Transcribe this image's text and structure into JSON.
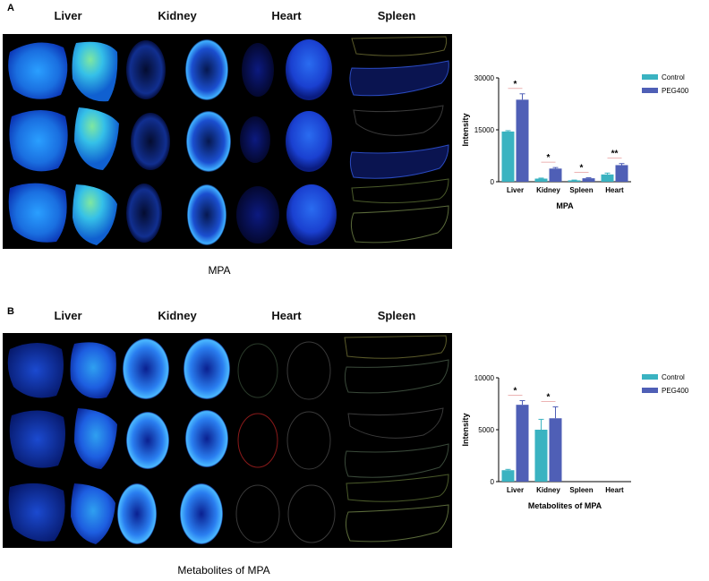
{
  "panel_a": {
    "letter": "A",
    "organs": [
      "Liver",
      "Kidney",
      "Heart",
      "Spleen"
    ],
    "caption": "MPA"
  },
  "panel_b": {
    "letter": "B",
    "organs": [
      "Liver",
      "Kidney",
      "Heart",
      "Spleen"
    ],
    "caption": "Metabolites of MPA"
  },
  "colors": {
    "control": "#3ab3c1",
    "peg400": "#4f5fb6",
    "significance_line": "#e8a0a0",
    "image_bg": "#000000"
  },
  "chart_data": [
    {
      "type": "bar",
      "title": "",
      "categories": [
        "Liver",
        "Kidney",
        "Spleen",
        "Heart"
      ],
      "series": [
        {
          "name": "Control",
          "values": [
            14500,
            900,
            400,
            2100
          ],
          "errors": [
            250,
            150,
            80,
            400
          ]
        },
        {
          "name": "PEG400",
          "values": [
            23700,
            3800,
            1000,
            4800
          ],
          "errors": [
            1700,
            300,
            150,
            450
          ]
        }
      ],
      "significance": [
        "*",
        "*",
        "*",
        "**"
      ],
      "xlabel": "MPA",
      "ylabel": "Intensity",
      "ylim": [
        0,
        30000
      ],
      "yticks": [
        "0",
        "15000",
        "30000"
      ],
      "legend_position": "top-right"
    },
    {
      "type": "bar",
      "title": "",
      "categories": [
        "Liver",
        "Kidney",
        "Spleen",
        "Heart"
      ],
      "series": [
        {
          "name": "Control",
          "values": [
            1100,
            5000,
            0,
            0
          ],
          "errors": [
            80,
            1000,
            0,
            0
          ]
        },
        {
          "name": "PEG400",
          "values": [
            7400,
            6100,
            0,
            0
          ],
          "errors": [
            400,
            1100,
            0,
            0
          ]
        }
      ],
      "significance": [
        "*",
        "*",
        "",
        ""
      ],
      "xlabel": "Metabolites of MPA",
      "ylabel": "Intensity",
      "ylim": [
        0,
        10000
      ],
      "yticks": [
        "0",
        "5000",
        "10000"
      ],
      "legend_position": "top-right"
    }
  ]
}
